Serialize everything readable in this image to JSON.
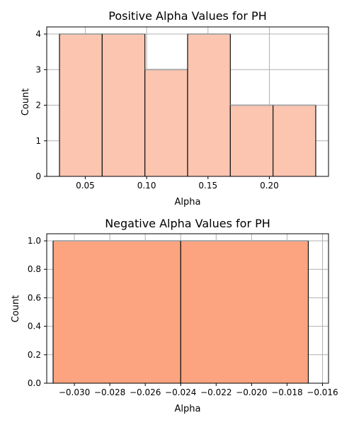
{
  "chart_data": [
    {
      "type": "bar",
      "title": "Positive Alpha Values for PH",
      "xlabel": "Alpha",
      "ylabel": "Count",
      "bin_edges": [
        0.029,
        0.0638,
        0.0986,
        0.1334,
        0.1682,
        0.203,
        0.2378
      ],
      "values": [
        4,
        4,
        3,
        4,
        2,
        2
      ],
      "xlim": [
        0.0186,
        0.2482
      ],
      "ylim": [
        0,
        4.2
      ],
      "xticks": [
        0.05,
        0.1,
        0.15,
        0.2
      ],
      "xtick_labels": [
        "0.05",
        "0.10",
        "0.15",
        "0.20"
      ],
      "yticks": [
        0,
        1,
        2,
        3,
        4
      ],
      "ytick_labels": [
        "0",
        "1",
        "2",
        "3",
        "4"
      ],
      "grid": true,
      "bar_color": "#fcc5b0",
      "edge_color": "#111111"
    },
    {
      "type": "bar",
      "title": "Negative Alpha Values for PH",
      "xlabel": "Alpha",
      "ylabel": "Count",
      "bin_edges": [
        -0.0312,
        -0.024,
        -0.0168
      ],
      "values": [
        1,
        1
      ],
      "xlim": [
        -0.03156,
        -0.01566
      ],
      "ylim": [
        0,
        1.05
      ],
      "xticks": [
        -0.03,
        -0.028,
        -0.026,
        -0.024,
        -0.022,
        -0.02,
        -0.018,
        -0.016
      ],
      "xtick_labels": [
        "−0.030",
        "−0.028",
        "−0.026",
        "−0.024",
        "−0.022",
        "−0.020",
        "−0.018",
        "−0.016"
      ],
      "yticks": [
        0,
        0.2,
        0.4,
        0.6,
        0.8,
        1.0
      ],
      "ytick_labels": [
        "0.0",
        "0.2",
        "0.4",
        "0.6",
        "0.8",
        "1.0"
      ],
      "grid": true,
      "bar_color": "#fba47f",
      "edge_color": "#111111"
    }
  ]
}
